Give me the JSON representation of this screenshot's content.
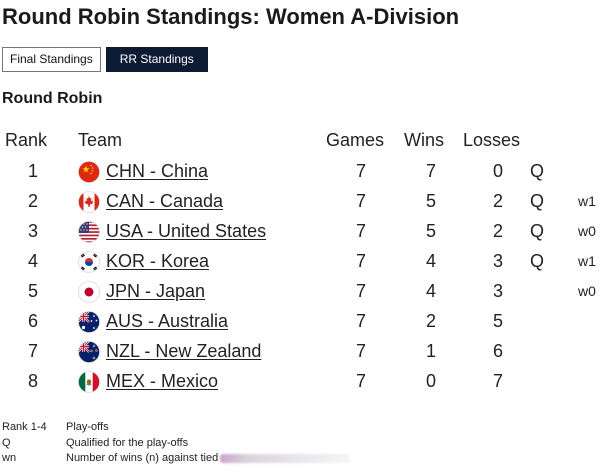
{
  "page": {
    "title": "Round Robin Standings: Women A-Division"
  },
  "tabs": [
    {
      "label": "Final Standings",
      "active": false
    },
    {
      "label": "RR Standings",
      "active": true
    }
  ],
  "section": {
    "title": "Round Robin"
  },
  "table": {
    "headers": {
      "rank": "Rank",
      "team": "Team",
      "games": "Games",
      "wins": "Wins",
      "losses": "Losses"
    },
    "rows": [
      {
        "rank": "1",
        "flag": "china-flag-icon",
        "team": "CHN - China",
        "games": "7",
        "wins": "7",
        "losses": "0",
        "q": "Q",
        "tie": ""
      },
      {
        "rank": "2",
        "flag": "canada-flag-icon",
        "team": "CAN - Canada",
        "games": "7",
        "wins": "5",
        "losses": "2",
        "q": "Q",
        "tie": "w1"
      },
      {
        "rank": "3",
        "flag": "usa-flag-icon",
        "team": "USA - United States",
        "games": "7",
        "wins": "5",
        "losses": "2",
        "q": "Q",
        "tie": "w0"
      },
      {
        "rank": "4",
        "flag": "korea-flag-icon",
        "team": "KOR - Korea",
        "games": "7",
        "wins": "4",
        "losses": "3",
        "q": "Q",
        "tie": "w1"
      },
      {
        "rank": "5",
        "flag": "japan-flag-icon",
        "team": "JPN - Japan",
        "games": "7",
        "wins": "4",
        "losses": "3",
        "q": "",
        "tie": "w0"
      },
      {
        "rank": "6",
        "flag": "australia-flag-icon",
        "team": "AUS - Australia",
        "games": "7",
        "wins": "2",
        "losses": "5",
        "q": "",
        "tie": ""
      },
      {
        "rank": "7",
        "flag": "new-zealand-flag-icon",
        "team": "NZL - New Zealand",
        "games": "7",
        "wins": "1",
        "losses": "6",
        "q": "",
        "tie": ""
      },
      {
        "rank": "8",
        "flag": "mexico-flag-icon",
        "team": "MEX - Mexico",
        "games": "7",
        "wins": "0",
        "losses": "7",
        "q": "",
        "tie": ""
      }
    ]
  },
  "legend": [
    {
      "key": "Rank 1-4",
      "value": "Play-offs"
    },
    {
      "key": "Q",
      "value": "Qualified for the play-offs"
    },
    {
      "key": "wn",
      "value": "Number of wins (n) against tied"
    }
  ],
  "colors": {
    "active_tab": "#0d1a33",
    "text": "#222222"
  }
}
